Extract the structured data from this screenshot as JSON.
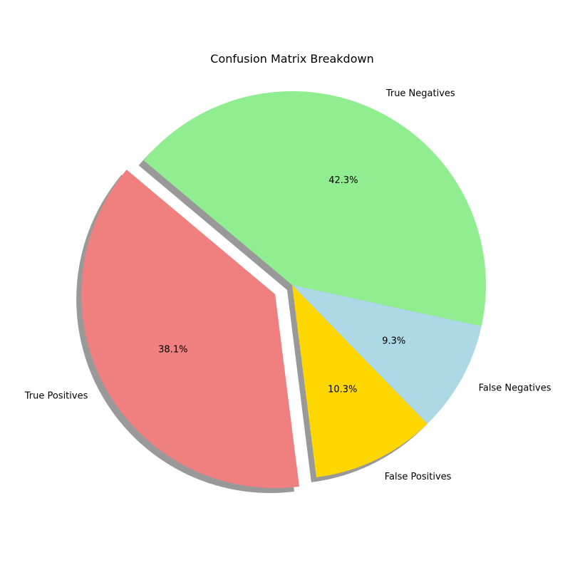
{
  "chart_data": {
    "type": "pie",
    "title": "Confusion Matrix Breakdown",
    "slices": [
      {
        "label": "True Positives",
        "value": 38.1,
        "pct_label": "38.1%",
        "color": "#f08080",
        "explode": true
      },
      {
        "label": "False Positives",
        "value": 10.3,
        "pct_label": "10.3%",
        "color": "#ffd700",
        "explode": false
      },
      {
        "label": "False Negatives",
        "value": 9.3,
        "pct_label": "9.3%",
        "color": "#add8e6",
        "explode": false
      },
      {
        "label": "True Negatives",
        "value": 42.3,
        "pct_label": "42.3%",
        "color": "#90ee90",
        "explode": false
      }
    ],
    "start_angle_deg": 140,
    "direction": "counterclockwise",
    "shadow": true,
    "legend": "none"
  }
}
